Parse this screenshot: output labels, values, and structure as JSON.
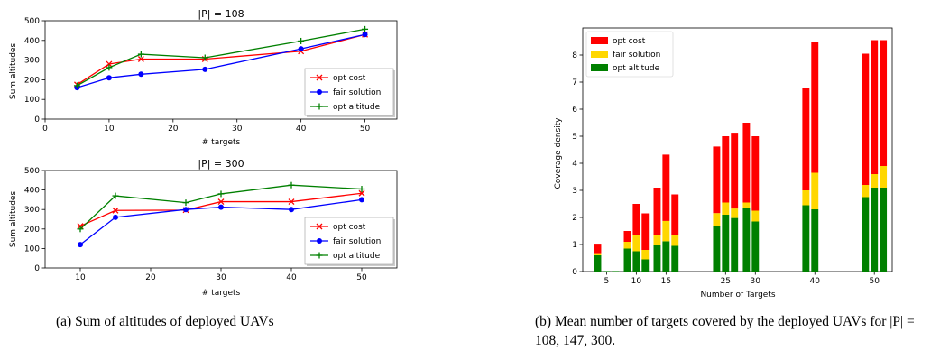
{
  "charts": {
    "a_top": {
      "title": "|P| = 108",
      "ylabel": "Sum altitudes",
      "xlabel": "# targets"
    },
    "a_bottom": {
      "title": "|P| = 300",
      "ylabel": "Sum altitudes",
      "xlabel": "# targets"
    },
    "b": {
      "ylabel": "Coverage density",
      "xlabel": "Number of Targets"
    }
  },
  "captions": {
    "a": "(a) Sum of altitudes of deployed UAVs",
    "b": "(b) Mean number of targets covered by the deployed UAVs for |P| = 108, 147, 300."
  },
  "chart_data": [
    {
      "type": "line",
      "title": "|P| = 108",
      "xlabel": "# targets",
      "ylabel": "Sum altitudes",
      "xlim": [
        0,
        55
      ],
      "ylim": [
        0,
        500
      ],
      "xticks": [
        0,
        10,
        20,
        30,
        40,
        50
      ],
      "yticks": [
        0,
        100,
        200,
        300,
        400,
        500
      ],
      "legend": "lower-right",
      "grid": false,
      "series": [
        {
          "name": "opt cost",
          "color": "#ff0000",
          "marker": "x",
          "x": [
            5,
            10,
            15,
            25,
            40,
            50
          ],
          "values": [
            175,
            280,
            305,
            305,
            345,
            430
          ]
        },
        {
          "name": "fair solution",
          "color": "#0000ff",
          "marker": "o",
          "x": [
            5,
            10,
            15,
            25,
            40,
            50
          ],
          "values": [
            160,
            210,
            228,
            253,
            357,
            430
          ]
        },
        {
          "name": "opt altitude",
          "color": "#008000",
          "marker": "+",
          "x": [
            5,
            10,
            15,
            25,
            40,
            50
          ],
          "values": [
            170,
            262,
            330,
            312,
            397,
            457
          ]
        }
      ]
    },
    {
      "type": "line",
      "title": "|P| = 300",
      "xlabel": "# targets",
      "ylabel": "Sum altitudes",
      "xlim": [
        5,
        55
      ],
      "ylim": [
        0,
        500
      ],
      "xticks": [
        10,
        20,
        30,
        40,
        50
      ],
      "yticks": [
        0,
        100,
        200,
        300,
        400,
        500
      ],
      "legend": "lower-right",
      "grid": false,
      "series": [
        {
          "name": "opt cost",
          "color": "#ff0000",
          "marker": "x",
          "x": [
            10,
            15,
            25,
            30,
            40,
            50
          ],
          "values": [
            215,
            295,
            297,
            340,
            340,
            383
          ]
        },
        {
          "name": "fair solution",
          "color": "#0000ff",
          "marker": "o",
          "x": [
            10,
            15,
            25,
            30,
            40,
            50
          ],
          "values": [
            120,
            260,
            300,
            312,
            300,
            350
          ]
        },
        {
          "name": "opt altitude",
          "color": "#008000",
          "marker": "+",
          "x": [
            10,
            15,
            25,
            30,
            40,
            50
          ],
          "values": [
            200,
            370,
            335,
            380,
            425,
            405
          ]
        }
      ]
    },
    {
      "type": "bar",
      "stacked": true,
      "xlabel": "Number of Targets",
      "ylabel": "Coverage density",
      "ylim": [
        0,
        9
      ],
      "yticks": [
        0,
        1,
        2,
        3,
        4,
        5,
        6,
        7,
        8
      ],
      "xticks": [
        5,
        10,
        15,
        25,
        30,
        40,
        50
      ],
      "legend": "top-left",
      "grid": false,
      "categories": [
        "5",
        "10",
        "15",
        "25",
        "30",
        "40",
        "50"
      ],
      "group_series": [
        "|P| = 108",
        "|P| = 147",
        "|P| = 300"
      ],
      "series": [
        {
          "name": "opt altitude",
          "color": "#008000",
          "values": [
            [
              0.6,
              0.02,
              0.02
            ],
            [
              0.85,
              0.75,
              0.45
            ],
            [
              1.0,
              1.12,
              0.95
            ],
            [
              1.68,
              2.1,
              1.98
            ],
            [
              2.35,
              1.85,
              null
            ],
            [
              2.45,
              2.3,
              null
            ],
            [
              2.75,
              3.1,
              3.1
            ]
          ]
        },
        {
          "name": "fair solution",
          "color": "#ffd700",
          "values": [
            [
              0.08,
              0.0,
              0.0
            ],
            [
              0.25,
              0.6,
              0.35
            ],
            [
              0.35,
              0.75,
              0.4
            ],
            [
              0.48,
              0.45,
              0.35
            ],
            [
              0.2,
              0.4,
              null
            ],
            [
              0.55,
              1.35,
              null
            ],
            [
              0.45,
              0.5,
              0.8
            ]
          ]
        },
        {
          "name": "opt cost",
          "color": "#ff0000",
          "values": [
            [
              0.35,
              0.0,
              0.0
            ],
            [
              0.4,
              1.15,
              1.35
            ],
            [
              1.75,
              2.45,
              1.5
            ],
            [
              2.46,
              2.45,
              2.8
            ],
            [
              2.95,
              2.75,
              null
            ],
            [
              3.8,
              4.85,
              null
            ],
            [
              4.85,
              4.95,
              4.65
            ]
          ]
        }
      ]
    }
  ]
}
